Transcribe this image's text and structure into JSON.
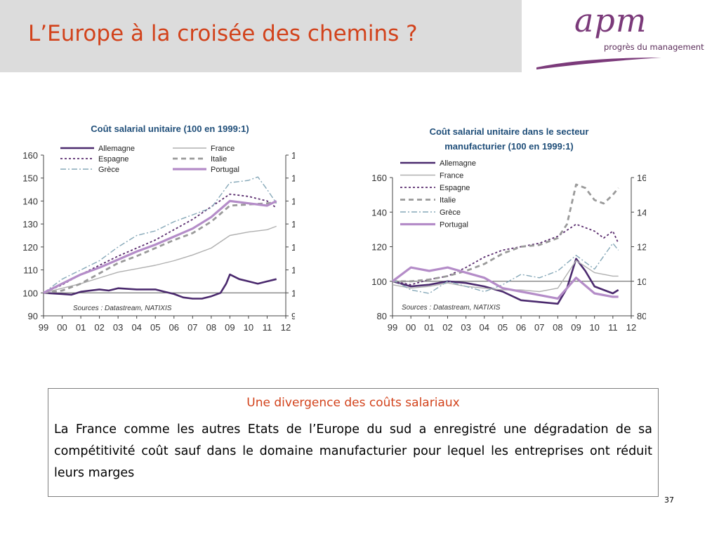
{
  "slide": {
    "title": "L’Europe à la croisée des chemins ?",
    "page_number": "37"
  },
  "logo": {
    "word": "apm",
    "tagline": "progrès du management",
    "color": "#7b3a7a"
  },
  "text_box": {
    "heading": "Une divergence des coûts salariaux",
    "body": "La France comme les autres Etats de l’Europe du sud a enregistré une dégradation de sa compétitivité coût sauf dans le domaine manufacturier pour lequel les entreprises ont réduit leurs marges"
  },
  "colors": {
    "accent": "#d2421b",
    "chart_title": "#1f4e79",
    "Allemagne": "#4b2a6e",
    "France": "#b0b0b0",
    "Espagne": "#5a2c6e",
    "Italie": "#9a9a9a",
    "Grèce": "#86a8b8",
    "Portugal": "#b48cc8"
  },
  "chart_data": [
    {
      "type": "line",
      "title": "Coût salarial unitaire (100 en 1999:1)",
      "source": "Sources : Datastream, NATIXIS",
      "xlim": [
        1999,
        2012
      ],
      "x_ticks": [
        "99",
        "00",
        "01",
        "02",
        "03",
        "04",
        "05",
        "06",
        "07",
        "08",
        "09",
        "10",
        "11",
        "12"
      ],
      "ylim": [
        90,
        160
      ],
      "y_ticks": [
        "90",
        "100",
        "110",
        "120",
        "130",
        "140",
        "150",
        "160"
      ],
      "baseline": 100,
      "legend": [
        "Allemagne",
        "Espagne",
        "Grèce",
        "France",
        "Italie",
        "Portugal"
      ],
      "series": [
        {
          "name": "Allemagne",
          "x": [
            1999.0,
            2000.0,
            2000.5,
            2001.0,
            2002.0,
            2002.5,
            2003.0,
            2004.0,
            2005.0,
            2005.5,
            2006.0,
            2006.5,
            2007.0,
            2007.5,
            2008.0,
            2008.5,
            2008.8,
            2009.0,
            2009.5,
            2010.0,
            2010.5,
            2011.0,
            2011.5
          ],
          "values": [
            100,
            99.5,
            99.2,
            100.5,
            101.5,
            101,
            102,
            101.5,
            101.5,
            100.5,
            99.5,
            98,
            97.5,
            97.5,
            98.5,
            100,
            104,
            108,
            106,
            105,
            104,
            105,
            106
          ]
        },
        {
          "name": "France",
          "x": [
            1999.0,
            2000.0,
            2001.0,
            2002.0,
            2003.0,
            2004.0,
            2005.0,
            2006.0,
            2007.0,
            2008.0,
            2009.0,
            2010.0,
            2011.0,
            2011.5
          ],
          "values": [
            100,
            102,
            104,
            106.5,
            109,
            110.5,
            112,
            114,
            116.5,
            119.5,
            125,
            126.5,
            127.5,
            129
          ]
        },
        {
          "name": "Espagne",
          "x": [
            1999.0,
            2000.0,
            2001.0,
            2002.0,
            2003.0,
            2004.0,
            2005.0,
            2006.0,
            2007.0,
            2008.0,
            2009.0,
            2010.0,
            2011.0,
            2011.5
          ],
          "values": [
            100,
            103.5,
            108,
            112,
            116,
            119.5,
            123,
            127.5,
            132,
            137.5,
            143,
            142,
            140,
            137
          ]
        },
        {
          "name": "Italie",
          "x": [
            1999.0,
            2000.0,
            2001.0,
            2002.0,
            2003.0,
            2004.0,
            2005.0,
            2006.0,
            2007.0,
            2008.0,
            2009.0,
            2010.0,
            2011.0,
            2011.5
          ],
          "values": [
            100,
            101,
            104,
            108.5,
            113,
            116,
            119.5,
            123,
            126,
            131,
            138,
            138.5,
            139,
            139.5
          ]
        },
        {
          "name": "Grèce",
          "x": [
            1999.0,
            2000.0,
            2001.0,
            2002.0,
            2003.0,
            2004.0,
            2005.0,
            2006.0,
            2007.0,
            2008.0,
            2009.0,
            2010.0,
            2010.5,
            2011.0,
            2011.5
          ],
          "values": [
            100,
            106,
            110,
            114,
            120,
            125,
            127,
            131,
            134,
            137,
            148,
            149,
            150.5,
            145,
            139
          ]
        },
        {
          "name": "Portugal",
          "x": [
            1999.0,
            2000.0,
            2001.0,
            2002.0,
            2003.0,
            2004.0,
            2005.0,
            2006.0,
            2007.0,
            2008.0,
            2009.0,
            2010.0,
            2011.0,
            2011.5
          ],
          "values": [
            100,
            104,
            108,
            111,
            114.5,
            118,
            121,
            124.5,
            128,
            133,
            140,
            139,
            138,
            140
          ]
        }
      ]
    },
    {
      "type": "line",
      "title": "Coût salarial unitaire dans le secteur manufacturier (100 en 1999:1)",
      "source": "Sources : Datastream, NATIXIS",
      "xlim": [
        1999,
        2012
      ],
      "x_ticks": [
        "99",
        "00",
        "01",
        "02",
        "03",
        "04",
        "05",
        "06",
        "07",
        "08",
        "09",
        "10",
        "11",
        "12"
      ],
      "ylim": [
        80,
        160
      ],
      "y_ticks": [
        "80",
        "100",
        "120",
        "140",
        "160"
      ],
      "baseline": 100,
      "legend": [
        "Allemagne",
        "France",
        "Espagne",
        "Italie",
        "Grèce",
        "Portugal"
      ],
      "series": [
        {
          "name": "Allemagne",
          "x": [
            1999.0,
            2000.0,
            2001.0,
            2002.0,
            2003.0,
            2004.0,
            2005.0,
            2006.0,
            2007.0,
            2008.0,
            2008.5,
            2009.0,
            2009.5,
            2010.0,
            2010.5,
            2011.0,
            2011.3
          ],
          "values": [
            100,
            97,
            98,
            100,
            99,
            97,
            94,
            89,
            88,
            87,
            96,
            113,
            106,
            97,
            95,
            93,
            95
          ]
        },
        {
          "name": "France",
          "x": [
            1999.0,
            2000.0,
            2001.0,
            2002.0,
            2003.0,
            2004.0,
            2005.0,
            2006.0,
            2007.0,
            2008.0,
            2009.0,
            2010.0,
            2011.0,
            2011.3
          ],
          "values": [
            98,
            96,
            97,
            99,
            97,
            96,
            95,
            95,
            94,
            96,
            112,
            105,
            103,
            103
          ]
        },
        {
          "name": "Espagne",
          "x": [
            1999.0,
            2000.0,
            2001.0,
            2002.0,
            2003.0,
            2004.0,
            2005.0,
            2006.0,
            2007.0,
            2008.0,
            2009.0,
            2010.0,
            2010.5,
            2011.0,
            2011.3
          ],
          "values": [
            100,
            98,
            101,
            103,
            108,
            114,
            118,
            120,
            122,
            126,
            133,
            129,
            125,
            129,
            122
          ]
        },
        {
          "name": "Italie",
          "x": [
            1999.0,
            2000.0,
            2001.0,
            2002.0,
            2003.0,
            2004.0,
            2005.0,
            2006.0,
            2007.0,
            2008.0,
            2008.5,
            2009.0,
            2009.5,
            2010.0,
            2010.5,
            2011.0,
            2011.3
          ],
          "values": [
            100,
            100,
            101,
            103,
            106,
            110,
            116,
            120,
            121,
            125,
            133,
            156,
            154,
            147,
            145,
            150,
            154
          ]
        },
        {
          "name": "Grèce",
          "x": [
            1999.0,
            2000.0,
            2001.0,
            2002.0,
            2003.0,
            2004.0,
            2005.0,
            2006.0,
            2007.0,
            2008.0,
            2009.0,
            2010.0,
            2011.0,
            2011.3
          ],
          "values": [
            101,
            95,
            93,
            100,
            97,
            94,
            98,
            104,
            102,
            106,
            115,
            107,
            122,
            118
          ]
        },
        {
          "name": "Portugal",
          "x": [
            1999.0,
            2000.0,
            2001.0,
            2002.0,
            2003.0,
            2004.0,
            2005.0,
            2006.0,
            2007.0,
            2008.0,
            2009.0,
            2010.0,
            2011.0,
            2011.3
          ],
          "values": [
            100,
            108,
            106,
            108,
            105,
            102,
            96,
            94,
            92,
            90,
            102,
            93,
            91,
            91
          ]
        }
      ]
    }
  ]
}
